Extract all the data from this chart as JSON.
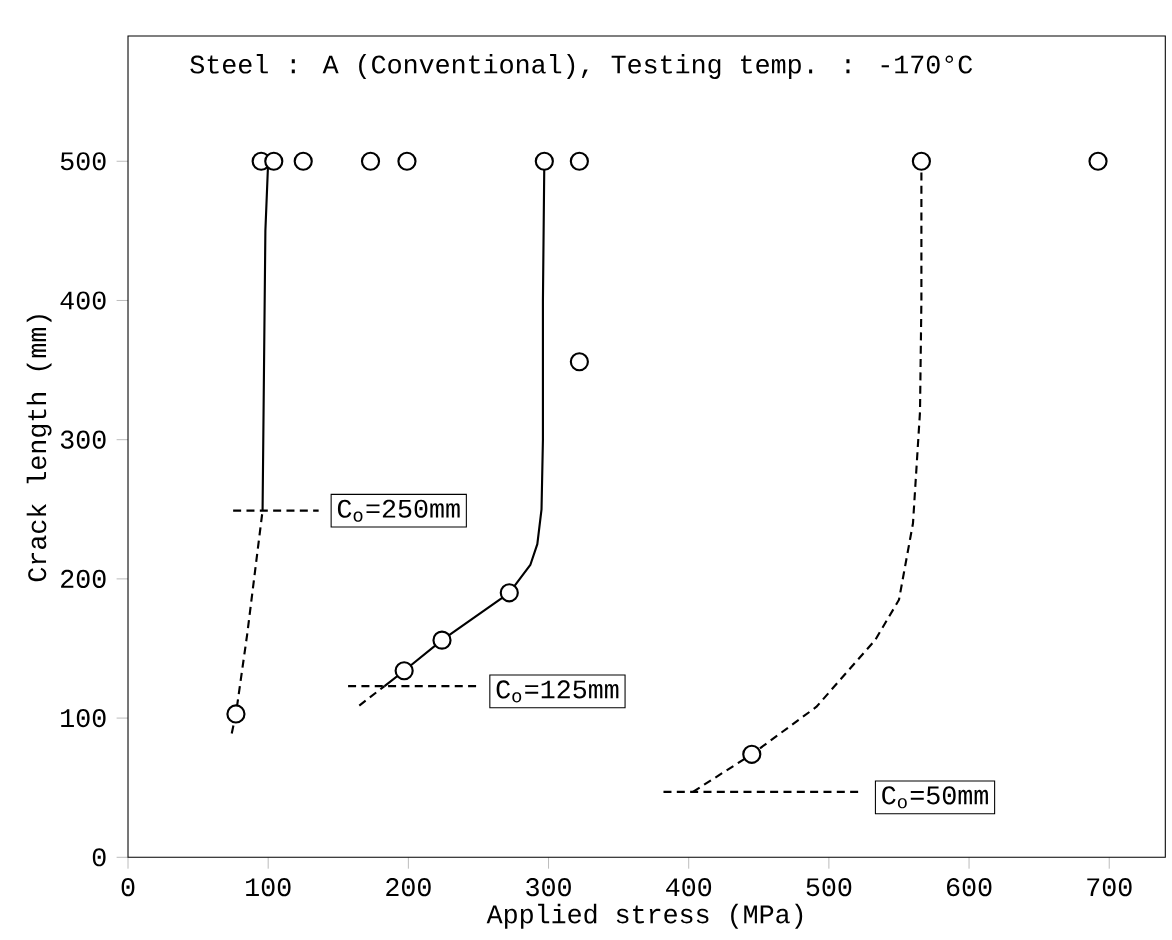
{
  "chart_data": {
    "type": "line",
    "title": "Steel : A (Conventional), Testing temp. : -170°C",
    "xlabel": "Applied stress  (MPa)",
    "ylabel": "Crack length  (mm)",
    "xlim": [
      0,
      740
    ],
    "ylim": [
      0,
      590
    ],
    "xticks": [
      0,
      100,
      200,
      300,
      400,
      500,
      600,
      700
    ],
    "yticks": [
      0,
      100,
      200,
      300,
      400,
      500
    ],
    "grid": false,
    "series": [
      {
        "color": "#000000",
        "line_style": "dashed",
        "x": [
          74,
          77,
          85,
          96
        ],
        "values": [
          89,
          103,
          160,
          249
        ]
      },
      {
        "color": "#000000",
        "line_style": "solid",
        "x": [
          96,
          97,
          98,
          100
        ],
        "values": [
          249,
          350,
          450,
          500
        ]
      },
      {
        "color": "#000000",
        "line_style": "dashed",
        "x": [
          165,
          183
        ],
        "values": [
          109,
          123
        ]
      },
      {
        "color": "#000000",
        "line_style": "solid",
        "x": [
          183,
          197,
          224,
          272,
          287,
          292,
          295,
          296,
          296,
          297
        ],
        "values": [
          123,
          134,
          156,
          190,
          210,
          225,
          250,
          300,
          400,
          500
        ]
      },
      {
        "color": "#000000",
        "line_style": "dashed",
        "x": [
          403,
          445,
          491,
          533,
          550,
          560,
          565,
          566,
          566
        ],
        "values": [
          47,
          74,
          108,
          156,
          185,
          240,
          320,
          400,
          500
        ]
      },
      {
        "color": "#000000",
        "line_style": "dashed",
        "x": [
          75,
          136
        ],
        "values": [
          249,
          249
        ]
      },
      {
        "color": "#000000",
        "line_style": "dashed",
        "x": [
          157,
          250
        ],
        "values": [
          123,
          123
        ]
      },
      {
        "color": "#000000",
        "line_style": "dashed",
        "x": [
          382,
          523
        ],
        "values": [
          47,
          47
        ]
      },
      {
        "type": "scatter",
        "color": "#000000",
        "marker": "circle",
        "x": [
          95,
          104,
          125,
          173,
          199,
          297,
          322,
          566,
          692,
          77,
          322,
          197,
          224,
          272,
          445
        ],
        "values": [
          500,
          500,
          500,
          500,
          500,
          500,
          500,
          500,
          500,
          103,
          356,
          134,
          156,
          190,
          74
        ]
      }
    ],
    "annotations": [
      "C$_{o}$=250mm",
      "C$_{o}$=125mm",
      "C$_{o}$=50mm"
    ]
  }
}
